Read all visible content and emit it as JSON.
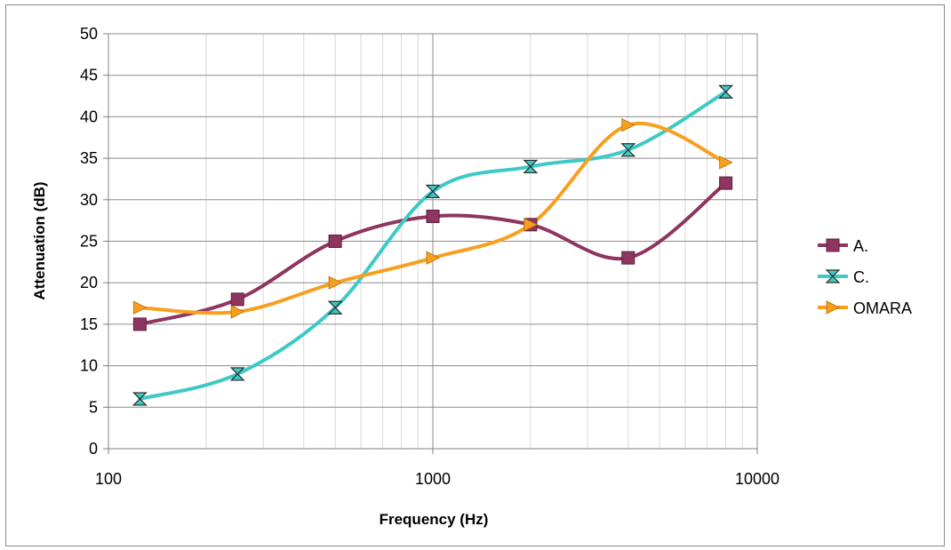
{
  "chart_data": {
    "type": "line",
    "xlabel": "Frequency (Hz)",
    "ylabel": "Attenuation (dB)",
    "x_scale": "log",
    "xlim": [
      100,
      10000
    ],
    "ylim": [
      0,
      50
    ],
    "x_ticks": [
      "100",
      "1000",
      "10000"
    ],
    "y_ticks": [
      "0",
      "5",
      "10",
      "15",
      "20",
      "25",
      "30",
      "35",
      "40",
      "45",
      "50"
    ],
    "grid": true,
    "smooth": true,
    "legend": "right",
    "x": [
      125,
      250,
      500,
      1000,
      2000,
      4000,
      8000
    ],
    "series": [
      {
        "name": "A.",
        "color": "#8e3560",
        "marker": "square",
        "values": [
          15,
          18,
          25,
          28,
          27,
          23,
          32
        ]
      },
      {
        "name": "C.",
        "color": "#3fc9c6",
        "marker": "hourglass",
        "values": [
          6,
          9,
          17,
          31,
          34,
          36,
          43
        ]
      },
      {
        "name": "OMARA",
        "color": "#f7a020",
        "marker": "triangle-right",
        "values": [
          17,
          16.5,
          20,
          23,
          27,
          39,
          34.5
        ]
      }
    ]
  }
}
